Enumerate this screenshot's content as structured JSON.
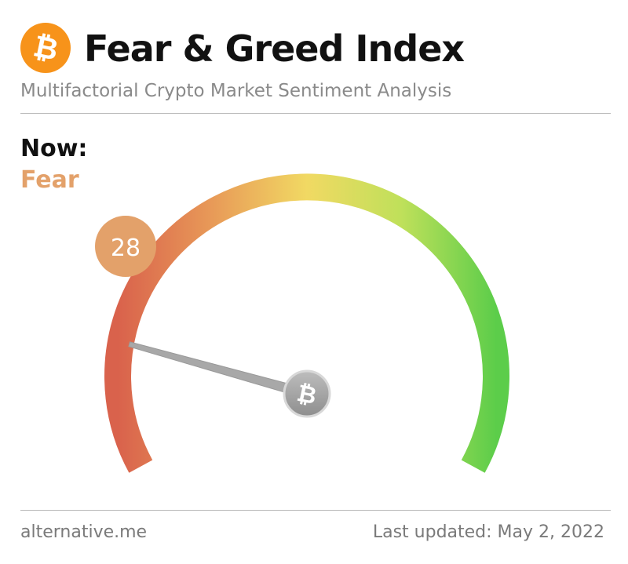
{
  "header": {
    "logo_icon": "bitcoin-icon",
    "logo_glyph": "₿",
    "title": "Fear & Greed Index",
    "subtitle": "Multifactorial Crypto Market Sentiment Analysis"
  },
  "now": {
    "label": "Now:",
    "classification": "Fear",
    "classification_color": "#e3a16a"
  },
  "gauge": {
    "value": 28,
    "value_text": "28",
    "min": 0,
    "max": 100,
    "bubble_color": "#e3a16a",
    "hub_icon": "bitcoin-icon",
    "hub_glyph": "₿",
    "colors": {
      "extreme_fear": "#d9624c",
      "fear": "#e89a58",
      "neutral": "#f1d963",
      "greed": "#bfe05a",
      "extreme_greed": "#5ccd4a"
    }
  },
  "footer": {
    "source": "alternative.me",
    "last_updated": "Last updated: May 2, 2022"
  }
}
